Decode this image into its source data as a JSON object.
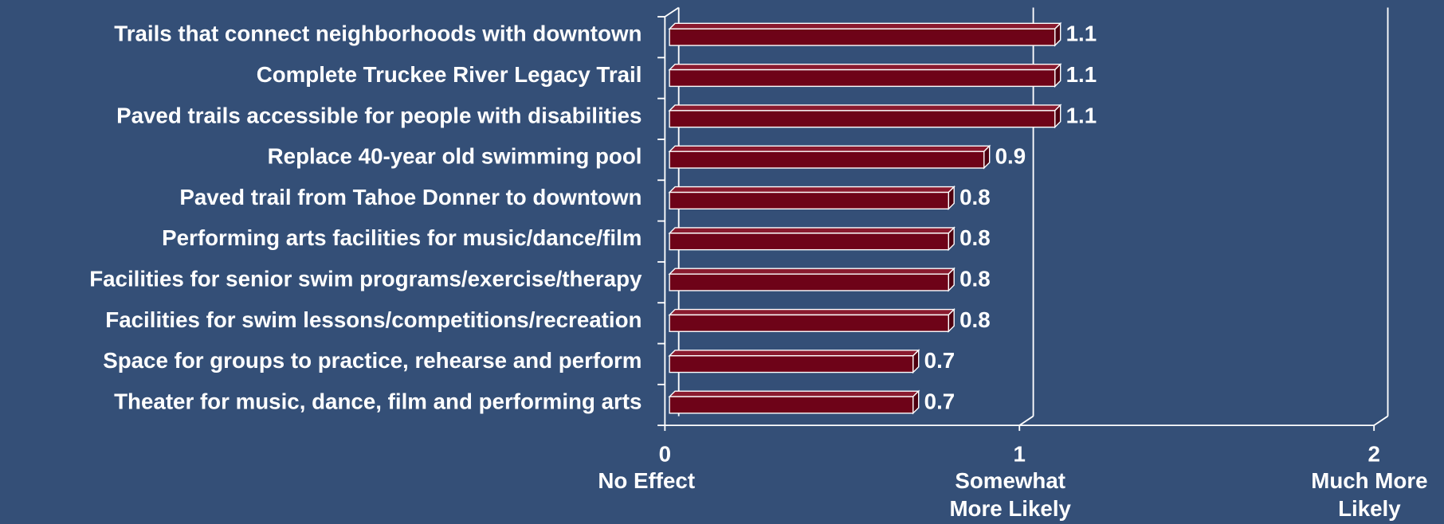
{
  "chart_data": {
    "type": "bar",
    "orientation": "horizontal",
    "categories": [
      "Trails that connect neighborhoods with downtown",
      "Complete Truckee River Legacy Trail",
      "Paved trails accessible for people with disabilities",
      "Replace 40-year old swimming pool",
      "Paved trail from Tahoe Donner to downtown",
      "Performing arts facilities for music/dance/film",
      "Facilities for senior swim programs/exercise/therapy",
      "Facilities for swim lessons/competitions/recreation",
      "Space for groups to practice, rehearse and perform",
      "Theater for music, dance, film and performing arts"
    ],
    "values": [
      1.1,
      1.1,
      1.1,
      0.9,
      0.8,
      0.8,
      0.8,
      0.8,
      0.7,
      0.7
    ],
    "color": "#6e0318",
    "xlim": [
      0,
      2
    ],
    "xticks": [
      0,
      1,
      2
    ],
    "xtick_descriptions": [
      [
        "No Effect"
      ],
      [
        "Somewhat",
        "More  Likely"
      ],
      [
        "Much More",
        "Likely"
      ]
    ],
    "grid": true
  }
}
